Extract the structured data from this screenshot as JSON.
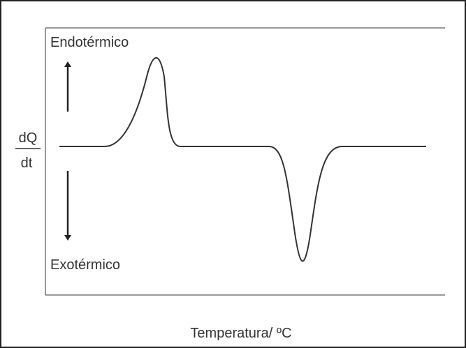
{
  "x_axis": {
    "label": "Temperatura/ ºC"
  },
  "y_axis": {
    "numerator": "dQ",
    "denominator": "dt"
  },
  "annotations": {
    "up": "Endotérmico",
    "down": "Exotérmico"
  }
}
